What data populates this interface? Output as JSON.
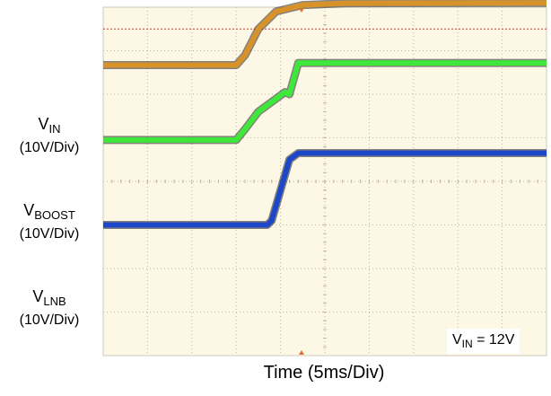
{
  "chart_data": {
    "type": "line",
    "title": "",
    "xlabel": "Time (5ms/Div)",
    "ylabel": "",
    "grid": true,
    "divisions": {
      "x": 10,
      "y": 8
    },
    "colors": {
      "background": "#fdf7e6",
      "grid": "#bdb6a6",
      "vin": "#d8922a",
      "vboost": "#3ee83a",
      "vlnb": "#1d47c9",
      "trigger_level": "#cc3322",
      "trigger_marker": "#e07030"
    },
    "annotation": {
      "prefix": "V",
      "sub": "IN",
      "suffix": " = 12V"
    },
    "series": [
      {
        "key": "vin",
        "label_main": "V",
        "label_sub": "IN",
        "label_unit": "(10V/Div)",
        "points": [
          [
            0,
            2.67
          ],
          [
            3.0,
            2.67
          ],
          [
            3.2,
            2.9
          ],
          [
            3.5,
            3.5
          ],
          [
            3.9,
            3.9
          ],
          [
            4.5,
            4.05
          ],
          [
            5.5,
            4.09
          ],
          [
            10,
            4.1
          ]
        ]
      },
      {
        "key": "vboost",
        "label_main": "V",
        "label_sub": "BOOST",
        "label_unit": "(10V/Div)",
        "points": [
          [
            0,
            0.95
          ],
          [
            3.0,
            0.95
          ],
          [
            3.2,
            1.2
          ],
          [
            3.5,
            1.6
          ],
          [
            3.9,
            1.9
          ],
          [
            4.1,
            2.05
          ],
          [
            4.2,
            2.0
          ],
          [
            4.4,
            2.72
          ],
          [
            10,
            2.72
          ]
        ]
      },
      {
        "key": "vlnb",
        "label_main": "V",
        "label_sub": "LNB",
        "label_unit": "(10V/Div)",
        "points": [
          [
            0,
            -1.0
          ],
          [
            3.7,
            -1.0
          ],
          [
            3.8,
            -0.9
          ],
          [
            4.2,
            0.5
          ],
          [
            4.4,
            0.65
          ],
          [
            10,
            0.65
          ]
        ]
      }
    ],
    "trigger_level": 3.5
  }
}
